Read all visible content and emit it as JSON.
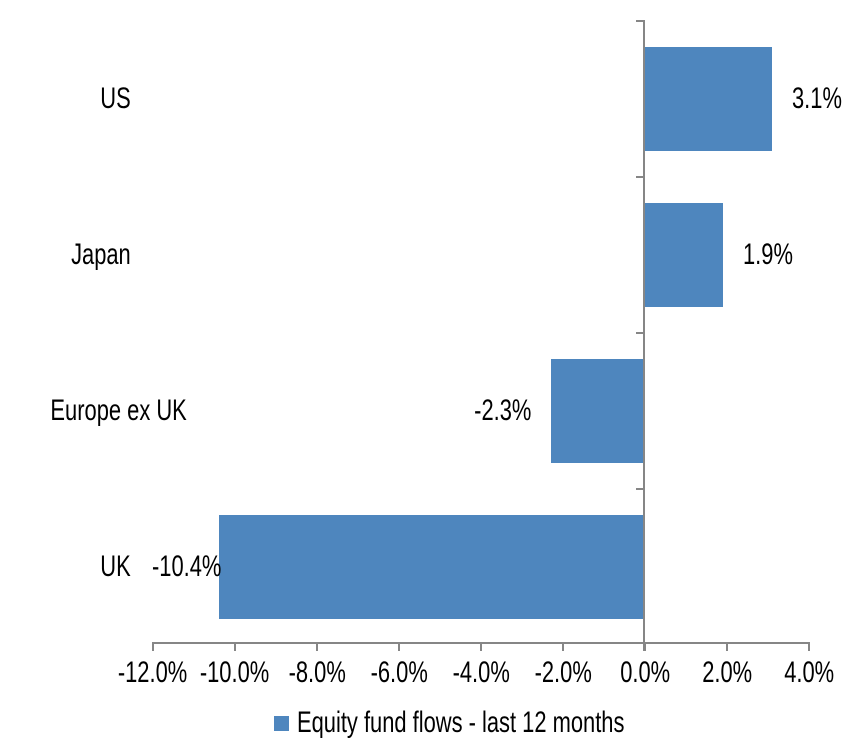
{
  "chart_data": {
    "type": "bar",
    "orientation": "horizontal",
    "title": "",
    "categories": [
      "US",
      "Japan",
      "Europe ex UK",
      "UK"
    ],
    "values": [
      3.1,
      1.9,
      -2.3,
      -10.4
    ],
    "data_labels": [
      "3.1%",
      "1.9%",
      "-2.3%",
      "-10.4%"
    ],
    "series_name": "Equity fund flows - last 12 months",
    "xlabel": "",
    "ylabel": "",
    "xlim": [
      -12,
      4
    ],
    "x_tick_step": 2,
    "x_tick_labels": [
      "-12.0%",
      "-10.0%",
      "-8.0%",
      "-6.0%",
      "-4.0%",
      "-2.0%",
      "0.0%",
      "2.0%",
      "4.0%"
    ],
    "grid": false,
    "legend_position": "bottom",
    "bar_color": "#4E86BE",
    "axis_color": "#868686",
    "text_color": "#000000",
    "background_color": "#FFFFFF"
  }
}
